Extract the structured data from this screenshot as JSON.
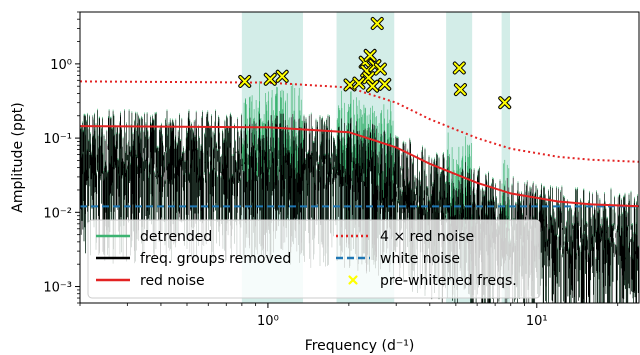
{
  "chart_data": {
    "type": "line",
    "xlabel": "Frequency (d⁻¹)",
    "ylabel": "Amplitude (ppt)",
    "x_scale": "log",
    "y_scale": "log",
    "xlim": [
      0.2,
      24
    ],
    "ylim": [
      0.0006,
      5
    ],
    "x_ticks": [
      {
        "value": 1,
        "label": "10⁰"
      },
      {
        "value": 10,
        "label": "10¹"
      }
    ],
    "y_ticks": [
      {
        "value": 0.001,
        "label": "10⁻³"
      },
      {
        "value": 0.01,
        "label": "10⁻²"
      },
      {
        "value": 0.1,
        "label": "10⁻¹"
      },
      {
        "value": 1,
        "label": "10⁰"
      }
    ],
    "shaded_frequency_groups": [
      [
        0.8,
        1.35
      ],
      [
        1.8,
        2.95
      ],
      [
        4.6,
        5.75
      ],
      [
        7.4,
        7.95
      ]
    ],
    "series": [
      {
        "name": "detrended",
        "color": "#3cb371",
        "style": "solid"
      },
      {
        "name": "freq. groups removed",
        "color": "#000000",
        "style": "solid"
      },
      {
        "name": "red noise",
        "color": "#e32222",
        "style": "solid",
        "x": [
          0.2,
          1.0,
          2.0,
          3.0,
          4.0,
          6.0,
          8.0,
          12.0,
          16.0,
          24.0
        ],
        "y": [
          0.145,
          0.14,
          0.12,
          0.075,
          0.045,
          0.025,
          0.018,
          0.014,
          0.0128,
          0.0121
        ]
      },
      {
        "name": "4 × red noise",
        "color": "#e32222",
        "style": "dotted",
        "x": [
          0.2,
          1.0,
          2.0,
          3.0,
          4.0,
          6.0,
          8.0,
          12.0,
          16.0,
          24.0
        ],
        "y": [
          0.58,
          0.56,
          0.48,
          0.3,
          0.18,
          0.1,
          0.072,
          0.056,
          0.051,
          0.048
        ]
      },
      {
        "name": "white noise",
        "color": "#1f77b4",
        "style": "dashed",
        "x": [
          0.2,
          24.0
        ],
        "y": [
          0.012,
          0.012
        ]
      },
      {
        "name": "pre-whitened freqs.",
        "color": "#ffff00",
        "style": "marker-x",
        "x": [
          0.82,
          1.02,
          1.13,
          2.02,
          2.18,
          2.3,
          2.33,
          2.37,
          2.4,
          2.45,
          2.5,
          2.55,
          2.62,
          2.72,
          5.15,
          5.2,
          7.6
        ],
        "y": [
          0.58,
          0.62,
          0.68,
          0.52,
          0.55,
          1.05,
          0.8,
          0.65,
          1.3,
          0.5,
          0.95,
          3.5,
          0.85,
          0.53,
          0.88,
          0.45,
          0.3
        ]
      }
    ],
    "legend_position": "lower-center",
    "grid": false
  }
}
